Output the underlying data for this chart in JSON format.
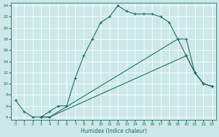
{
  "xlabel": "Humidex (Indice chaleur)",
  "background_color": "#cce8e8",
  "grid_color": "#ffffff",
  "line_color": "#1a6b5a",
  "xlim": [
    -0.5,
    23.5
  ],
  "ylim": [
    3.5,
    24.5
  ],
  "xticks": [
    0,
    1,
    2,
    3,
    4,
    5,
    6,
    7,
    8,
    9,
    10,
    11,
    12,
    13,
    14,
    15,
    16,
    17,
    18,
    19,
    20,
    21,
    22,
    23
  ],
  "yticks": [
    4,
    6,
    8,
    10,
    12,
    14,
    16,
    18,
    20,
    22,
    24
  ],
  "curve1_x": [
    0,
    1,
    2,
    3,
    4,
    5,
    6,
    7,
    8,
    9,
    10,
    11,
    12,
    13,
    14,
    15,
    16,
    17,
    18,
    19,
    20,
    21,
    22,
    23
  ],
  "curve1_y": [
    7,
    5,
    4,
    4,
    5,
    6,
    6,
    11,
    15,
    18,
    21,
    22,
    24,
    23,
    22.5,
    22.5,
    22.5,
    22,
    21,
    18,
    15,
    12,
    10,
    9.5
  ],
  "curve2_x": [
    3,
    4,
    20,
    21,
    22,
    23
  ],
  "curve2_y": [
    4,
    4,
    15,
    12,
    10,
    9.5
  ],
  "curve3_x": [
    3,
    4,
    19,
    20,
    21,
    22,
    23
  ],
  "curve3_y": [
    4,
    4,
    18,
    18,
    12,
    10,
    9.5
  ]
}
